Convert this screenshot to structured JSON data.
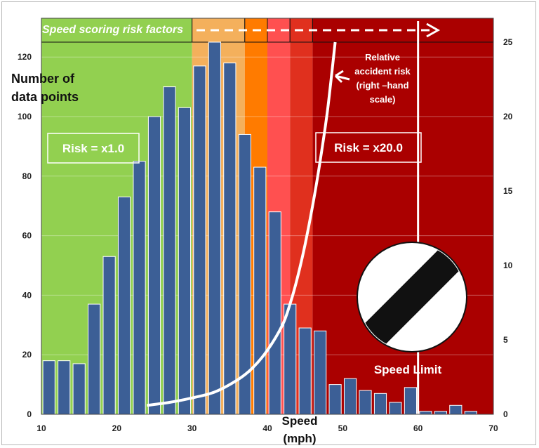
{
  "chart_data": {
    "type": "bar",
    "title": "",
    "banner": "Speed scoring risk factors",
    "ylabel_lines": [
      "Number of",
      "data points"
    ],
    "xlabel_lines": [
      "Speed",
      "(mph)"
    ],
    "xlim": [
      10,
      70
    ],
    "x_ticks": [
      "10",
      "20",
      "30",
      "40",
      "50",
      "60",
      "70"
    ],
    "ylim": [
      0,
      125
    ],
    "y_ticks": [
      "0",
      "20",
      "40",
      "60",
      "80",
      "100",
      "120"
    ],
    "y2lim": [
      0,
      25
    ],
    "y2_ticks": [
      "0",
      "5",
      "10",
      "15",
      "20",
      "25"
    ],
    "bars": {
      "x": [
        10,
        12,
        14,
        16,
        18,
        20,
        22,
        24,
        26,
        28,
        30,
        32,
        34,
        36,
        38,
        40,
        42,
        44,
        46,
        48,
        50,
        52,
        54,
        56,
        58,
        60,
        62,
        64,
        66
      ],
      "values": [
        18,
        18,
        17,
        37,
        53,
        73,
        85,
        100,
        110,
        103,
        117,
        125,
        118,
        94,
        83,
        68,
        37,
        29,
        28,
        10,
        12,
        8,
        7,
        4,
        9,
        1,
        1,
        3,
        1
      ],
      "color": "#3c5f96"
    },
    "risk_curve": {
      "name": "Relative accident risk (right –hand scale)",
      "label_lines": [
        "Relative",
        "accident risk",
        "(right –hand",
        "scale)"
      ],
      "x": [
        24,
        27,
        30,
        33,
        36,
        38,
        40,
        42,
        43,
        44,
        45,
        46,
        47,
        48,
        49
      ],
      "values": [
        0.6,
        0.8,
        1.1,
        1.5,
        2.3,
        3.1,
        4.3,
        6.0,
        7.4,
        9.2,
        11.4,
        14.0,
        17.0,
        20.5,
        25.0
      ],
      "color": "#ffffff"
    },
    "risk_bands": [
      {
        "from": 10,
        "to": 30,
        "color": "#92d050"
      },
      {
        "from": 30,
        "to": 37,
        "color": "#f4b05c"
      },
      {
        "from": 37,
        "to": 40,
        "color": "#ff7b00"
      },
      {
        "from": 40,
        "to": 43,
        "color": "#ff5050"
      },
      {
        "from": 43,
        "to": 46,
        "color": "#e0301e"
      },
      {
        "from": 46,
        "to": 70,
        "color": "#aa0000"
      }
    ],
    "risk_labels": [
      "Risk = x1.0",
      "Risk = x20.0"
    ],
    "speed_limit": {
      "x": 60,
      "label": "Speed Limit"
    }
  }
}
